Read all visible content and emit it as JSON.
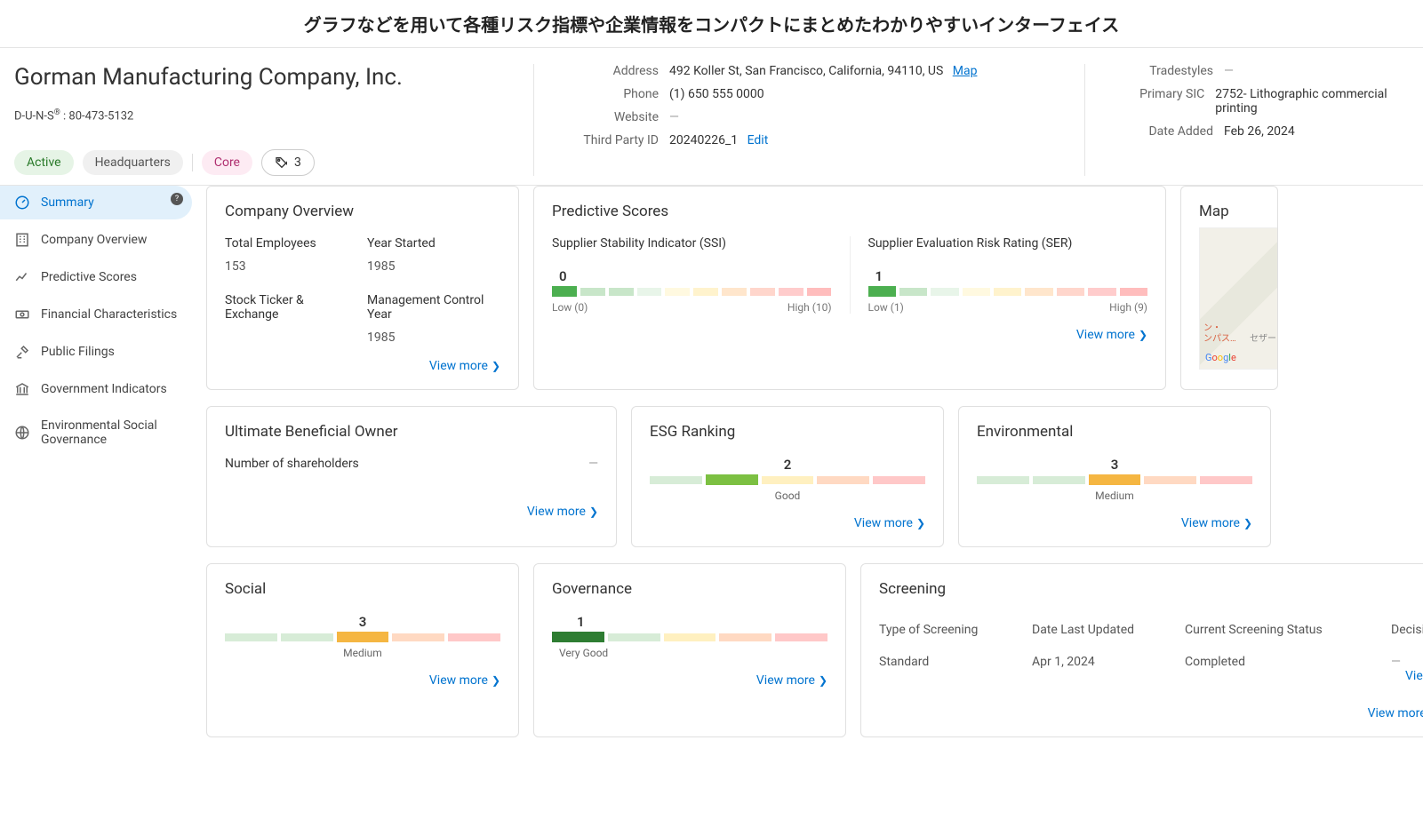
{
  "page_title": "グラフなどを用いて各種リスク指標や企業情報をコンパクトにまとめたわかりやすいインターフェイス",
  "company": {
    "name": "Gorman Manufacturing Company, Inc.",
    "duns_label": "D-U-N-S",
    "duns_value": "80-473-5132",
    "pills": {
      "active": "Active",
      "hq": "Headquarters",
      "core": "Core",
      "tag_count": "3"
    }
  },
  "contact": {
    "address_label": "Address",
    "address": "492 Koller St, San Francisco, California, 94110, US",
    "map_link": "Map",
    "phone_label": "Phone",
    "phone": "(1) 650 555 0000",
    "website_label": "Website",
    "website": "—",
    "tpid_label": "Third Party ID",
    "tpid": "20240226_1",
    "edit": "Edit"
  },
  "meta": {
    "tradestyles_label": "Tradestyles",
    "tradestyles": "—",
    "sic_label": "Primary SIC",
    "sic": "2752- Lithographic commercial printing",
    "date_added_label": "Date Added",
    "date_added": "Feb 26, 2024"
  },
  "nav": {
    "summary": "Summary",
    "company_overview": "Company Overview",
    "predictive_scores": "Predictive Scores",
    "financial": "Financial Characteristics",
    "public_filings": "Public Filings",
    "government": "Government Indicators",
    "esg": "Environmental Social Governance",
    "badge": "?"
  },
  "view_more": "View more",
  "cards": {
    "overview": {
      "title": "Company Overview",
      "total_employees_label": "Total Employees",
      "total_employees": "153",
      "year_started_label": "Year Started",
      "year_started": "1985",
      "stock_label": "Stock Ticker & Exchange",
      "stock_value": "",
      "mgmt_label": "Management Control Year",
      "mgmt_value": "1985"
    },
    "predictive": {
      "title": "Predictive Scores",
      "ssi": {
        "label": "Supplier Stability Indicator (SSI)",
        "value": "0",
        "low": "Low (0)",
        "high": "High (10)",
        "segments": 10,
        "active": 0,
        "colors": [
          "#4caf50",
          "#c8e6c9",
          "#c8e6c9",
          "#e8f5e9",
          "#fff9e0",
          "#fff3cd",
          "#ffe6cc",
          "#ffd6cc",
          "#ffcccc",
          "#ffbdbd"
        ]
      },
      "ser": {
        "label": "Supplier Evaluation Risk Rating (SER)",
        "value": "1",
        "low": "Low (1)",
        "high": "High (9)",
        "segments": 9,
        "active": 0,
        "colors": [
          "#4caf50",
          "#c8e6c9",
          "#e8f5e9",
          "#fff9e0",
          "#fff3cd",
          "#ffe6cc",
          "#ffd6cc",
          "#ffcccc",
          "#ffbdbd"
        ]
      }
    },
    "map": {
      "title": "Map",
      "overlay1": "ン・",
      "overlay2": "ンパス…",
      "overlay3": "セザー・"
    },
    "ubo": {
      "title": "Ultimate Beneficial Owner",
      "shareholders_label": "Number of shareholders",
      "shareholders": "—"
    },
    "esg_ranking": {
      "title": "ESG Ranking",
      "value": "2",
      "caption": "Good",
      "segments": 5,
      "active": 1,
      "colors": [
        "#d7ecd7",
        "#7cc042",
        "#fff0c0",
        "#ffd9c2",
        "#ffc8c8"
      ]
    },
    "environmental": {
      "title": "Environmental",
      "value": "3",
      "caption": "Medium",
      "segments": 5,
      "active": 2,
      "colors": [
        "#d7ecd7",
        "#d7ecd7",
        "#f5b642",
        "#ffd9c2",
        "#ffc8c8"
      ]
    },
    "social": {
      "title": "Social",
      "value": "3",
      "caption": "Medium",
      "segments": 5,
      "active": 2,
      "colors": [
        "#d7ecd7",
        "#d7ecd7",
        "#f5b642",
        "#ffd9c2",
        "#ffc8c8"
      ]
    },
    "governance": {
      "title": "Governance",
      "value": "1",
      "caption": "Very Good",
      "segments": 5,
      "active": 0,
      "colors": [
        "#2e7d32",
        "#d7ecd7",
        "#fff0c0",
        "#ffd9c2",
        "#ffc8c8"
      ]
    },
    "screening": {
      "title": "Screening",
      "headers": {
        "type": "Type of Screening",
        "date": "Date Last Updated",
        "status": "Current Screening Status",
        "decision": "Decision"
      },
      "row": {
        "type": "Standard",
        "date": "Apr 1, 2024",
        "status": "Completed",
        "decision": "—",
        "view": "View"
      }
    }
  },
  "style": {
    "accent": "#0073cf"
  }
}
